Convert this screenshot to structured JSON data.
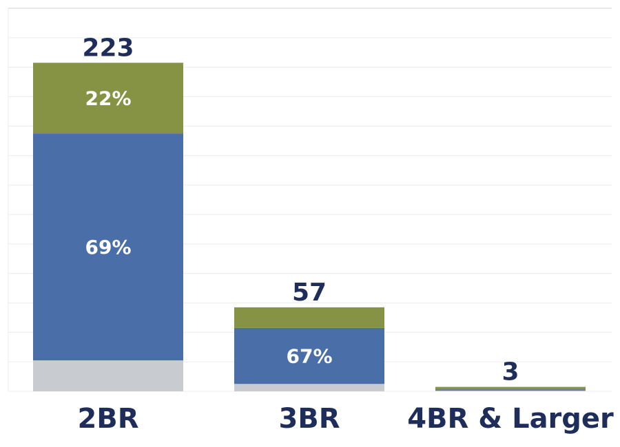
{
  "chart_data": {
    "type": "bar",
    "stacked": true,
    "categories": [
      "2BR",
      "3BR",
      "4BR & Larger"
    ],
    "totals": [
      223,
      57,
      3
    ],
    "total_labels": [
      "223",
      "57",
      "3"
    ],
    "series": [
      {
        "values": [
          21,
          5,
          0.5
        ],
        "color": "#c8cbcf",
        "labels": [
          "",
          "",
          ""
        ]
      },
      {
        "values": [
          154,
          38,
          0.8
        ],
        "color": "#4a6fa8",
        "labels": [
          "69%",
          "67%",
          ""
        ]
      },
      {
        "values": [
          48,
          14,
          1.7
        ],
        "color": "#879344",
        "labels": [
          "22%",
          "",
          ""
        ]
      }
    ],
    "ylim": [
      0,
      260
    ],
    "grid": true,
    "title": "",
    "xlabel": "",
    "ylabel": ""
  }
}
